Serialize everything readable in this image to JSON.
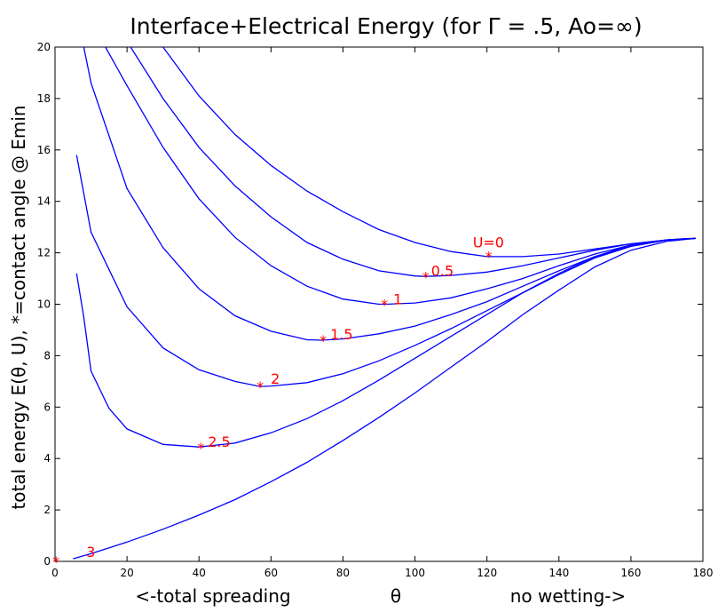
{
  "chart_data": {
    "type": "line",
    "title": "Interface+Electrical Energy (for Γ = .5, Ao=∞)",
    "ylabel": "total energy E(θ, U),  *=contact angle @ Emin",
    "xlabel": {
      "left": "<-total spreading",
      "center": "θ",
      "right": "no wetting->"
    },
    "xlim": [
      0,
      180
    ],
    "ylim": [
      0,
      20
    ],
    "xticks": [
      0,
      20,
      40,
      60,
      80,
      100,
      120,
      140,
      160,
      180
    ],
    "yticks": [
      0,
      2,
      4,
      6,
      8,
      10,
      12,
      14,
      16,
      18,
      20
    ],
    "grid": false,
    "line_color": "#0000ff",
    "marker_color": "#ff0000",
    "series": [
      {
        "name": "U=0",
        "x": [
          30,
          40,
          50,
          60,
          70,
          80,
          90,
          100,
          110,
          120,
          130,
          140,
          150,
          160,
          170,
          175,
          178
        ],
        "y": [
          20.0,
          18.1,
          16.6,
          15.4,
          14.4,
          13.6,
          12.9,
          12.4,
          12.05,
          11.85,
          11.85,
          11.95,
          12.15,
          12.35,
          12.5,
          12.55,
          12.56
        ],
        "min_x": 120.5,
        "min_y": 11.87,
        "label": "U=0"
      },
      {
        "name": "0.5",
        "x": [
          21,
          30,
          40,
          50,
          60,
          70,
          80,
          90,
          100,
          103,
          110,
          120,
          130,
          140,
          150,
          160,
          170,
          178
        ],
        "y": [
          20.0,
          18.0,
          16.1,
          14.6,
          13.4,
          12.4,
          11.75,
          11.3,
          11.1,
          11.08,
          11.12,
          11.25,
          11.5,
          11.8,
          12.1,
          12.35,
          12.5,
          12.56
        ],
        "min_x": 103,
        "min_y": 11.07,
        "label": "0.5"
      },
      {
        "name": "1",
        "x": [
          14,
          20,
          30,
          40,
          50,
          60,
          70,
          80,
          90,
          92,
          100,
          110,
          120,
          130,
          140,
          150,
          160,
          170,
          178
        ],
        "y": [
          20.0,
          18.5,
          16.1,
          14.1,
          12.6,
          11.5,
          10.7,
          10.2,
          10.0,
          10.0,
          10.05,
          10.25,
          10.6,
          11.0,
          11.5,
          11.95,
          12.3,
          12.5,
          12.56
        ],
        "min_x": 91.5,
        "min_y": 10.0,
        "label": "1"
      },
      {
        "name": "1.5",
        "x": [
          8,
          10,
          20,
          30,
          40,
          50,
          60,
          70,
          74,
          80,
          90,
          100,
          110,
          120,
          130,
          140,
          150,
          160,
          170,
          178
        ],
        "y": [
          20.0,
          18.6,
          14.5,
          12.2,
          10.6,
          9.55,
          8.95,
          8.62,
          8.6,
          8.65,
          8.85,
          9.15,
          9.6,
          10.1,
          10.7,
          11.3,
          11.85,
          12.3,
          12.5,
          12.56
        ],
        "min_x": 74.5,
        "min_y": 8.6,
        "label": "1.5"
      },
      {
        "name": "2",
        "x": [
          6,
          10,
          20,
          30,
          40,
          50,
          57,
          60,
          70,
          80,
          90,
          100,
          110,
          120,
          130,
          140,
          150,
          160,
          170,
          178
        ],
        "y": [
          15.8,
          12.8,
          9.9,
          8.3,
          7.45,
          7.0,
          6.8,
          6.82,
          6.95,
          7.3,
          7.8,
          8.4,
          9.05,
          9.75,
          10.45,
          11.15,
          11.8,
          12.25,
          12.5,
          12.56
        ],
        "min_x": 57,
        "min_y": 6.8,
        "label": "2"
      },
      {
        "name": "2.5",
        "x": [
          6,
          8,
          10,
          15,
          20,
          30,
          40,
          50,
          60,
          70,
          80,
          90,
          100,
          110,
          120,
          130,
          140,
          150,
          160,
          170,
          178
        ],
        "y": [
          11.2,
          9.5,
          7.4,
          5.95,
          5.15,
          4.55,
          4.45,
          4.6,
          5.0,
          5.55,
          6.25,
          7.05,
          7.9,
          8.75,
          9.6,
          10.45,
          11.2,
          11.85,
          12.25,
          12.5,
          12.56
        ],
        "min_x": 40.5,
        "min_y": 4.42,
        "label": "2.5"
      },
      {
        "name": "3",
        "x": [
          5,
          10,
          20,
          30,
          40,
          50,
          60,
          70,
          80,
          90,
          100,
          110,
          120,
          130,
          140,
          150,
          160,
          170,
          178
        ],
        "y": [
          0.1,
          0.3,
          0.75,
          1.25,
          1.8,
          2.4,
          3.1,
          3.85,
          4.7,
          5.6,
          6.55,
          7.55,
          8.55,
          9.6,
          10.55,
          11.45,
          12.1,
          12.45,
          12.56
        ],
        "min_x": 0.3,
        "min_y": 0.0,
        "label": "3"
      }
    ]
  }
}
